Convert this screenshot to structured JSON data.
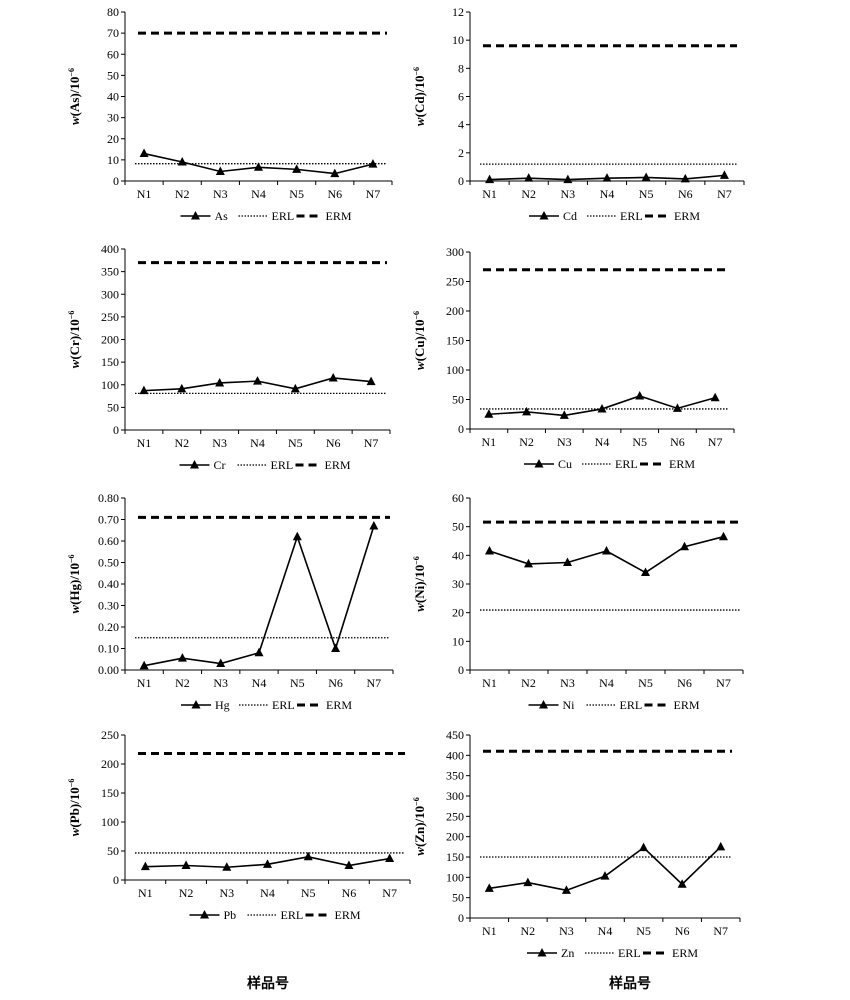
{
  "x_group_labels": [
    "样品号",
    "样品号"
  ],
  "legend_labels": {
    "erl": "ERL",
    "erm": "ERM"
  },
  "chart_data": [
    {
      "type": "line",
      "element": "As",
      "ylabel_prefix": "w",
      "ylabel_elem": "(As)",
      "ylabel_unit": "/10",
      "ylabel_exp": "−6",
      "categories": [
        "N1",
        "N2",
        "N3",
        "N4",
        "N5",
        "N6",
        "N7"
      ],
      "series": [
        {
          "name": "As",
          "values": [
            13,
            9,
            4.5,
            6.5,
            5.5,
            3.5,
            8
          ]
        }
      ],
      "erl": 8.2,
      "erm": 70,
      "ylim": [
        0,
        80
      ],
      "yticks": [
        "0",
        "10",
        "20",
        "30",
        "40",
        "50",
        "60",
        "70",
        "80"
      ]
    },
    {
      "type": "line",
      "element": "Cd",
      "ylabel_prefix": "w",
      "ylabel_elem": "(Cd)",
      "ylabel_unit": "/10",
      "ylabel_exp": "−6",
      "categories": [
        "N1",
        "N2",
        "N3",
        "N4",
        "N5",
        "N6",
        "N7"
      ],
      "series": [
        {
          "name": "Cd",
          "values": [
            0.1,
            0.2,
            0.1,
            0.2,
            0.25,
            0.15,
            0.4
          ]
        }
      ],
      "erl": 1.2,
      "erm": 9.6,
      "ylim": [
        0,
        12
      ],
      "yticks": [
        "0",
        "2",
        "4",
        "6",
        "8",
        "10",
        "12"
      ]
    },
    {
      "type": "line",
      "element": "Cr",
      "ylabel_prefix": "w",
      "ylabel_elem": "(Cr)",
      "ylabel_unit": "/10",
      "ylabel_exp": "−6",
      "categories": [
        "N1",
        "N2",
        "N3",
        "N4",
        "N5",
        "N6",
        "N7"
      ],
      "series": [
        {
          "name": "Cr",
          "values": [
            87,
            91,
            104,
            108,
            91,
            115,
            107
          ]
        }
      ],
      "erl": 81,
      "erm": 370,
      "ylim": [
        0,
        400
      ],
      "yticks": [
        "0",
        "50",
        "100",
        "150",
        "200",
        "250",
        "300",
        "350",
        "400"
      ]
    },
    {
      "type": "line",
      "element": "Cu",
      "ylabel_prefix": "w",
      "ylabel_elem": "(Cu)",
      "ylabel_unit": "/10",
      "ylabel_exp": "−6",
      "categories": [
        "N1",
        "N2",
        "N3",
        "N4",
        "N5",
        "N6",
        "N7"
      ],
      "series": [
        {
          "name": "Cu",
          "values": [
            25,
            29,
            23,
            34,
            56,
            35,
            53
          ]
        }
      ],
      "erl": 34,
      "erm": 270,
      "ylim": [
        0,
        300
      ],
      "yticks": [
        "0",
        "50",
        "100",
        "150",
        "200",
        "250",
        "300"
      ]
    },
    {
      "type": "line",
      "element": "Hg",
      "ylabel_prefix": "w",
      "ylabel_elem": "(Hg)",
      "ylabel_unit": "/10",
      "ylabel_exp": "−6",
      "categories": [
        "N1",
        "N2",
        "N3",
        "N4",
        "N5",
        "N6",
        "N7"
      ],
      "series": [
        {
          "name": "Hg",
          "values": [
            0.02,
            0.055,
            0.03,
            0.08,
            0.62,
            0.1,
            0.67
          ]
        }
      ],
      "erl": 0.15,
      "erm": 0.71,
      "ylim": [
        0,
        0.8
      ],
      "yticks": [
        "0.00",
        "0.10",
        "0.20",
        "0.30",
        "0.40",
        "0.50",
        "0.60",
        "0.70",
        "0.80"
      ]
    },
    {
      "type": "line",
      "element": "Ni",
      "ylabel_prefix": "w",
      "ylabel_elem": "(Ni)",
      "ylabel_unit": "/10",
      "ylabel_exp": "−6",
      "categories": [
        "N1",
        "N2",
        "N3",
        "N4",
        "N5",
        "N6",
        "N7"
      ],
      "series": [
        {
          "name": "Ni",
          "values": [
            41.5,
            37,
            37.5,
            41.5,
            34,
            43,
            46.5
          ]
        }
      ],
      "erl": 20.9,
      "erm": 51.6,
      "ylim": [
        0,
        60
      ],
      "yticks": [
        "0",
        "10",
        "20",
        "30",
        "40",
        "50",
        "60"
      ]
    },
    {
      "type": "line",
      "element": "Pb",
      "ylabel_prefix": "w",
      "ylabel_elem": "(Pb)",
      "ylabel_unit": "/10",
      "ylabel_exp": "−6",
      "categories": [
        "N1",
        "N2",
        "N3",
        "N4",
        "N5",
        "N6",
        "N7"
      ],
      "series": [
        {
          "name": "Pb",
          "values": [
            23,
            25,
            22,
            27,
            40,
            25,
            37
          ]
        }
      ],
      "erl": 46.7,
      "erm": 218,
      "ylim": [
        0,
        250
      ],
      "yticks": [
        "0",
        "50",
        "100",
        "150",
        "200",
        "250"
      ]
    },
    {
      "type": "line",
      "element": "Zn",
      "ylabel_prefix": "w",
      "ylabel_elem": "(Zn)",
      "ylabel_unit": "/10",
      "ylabel_exp": "−6",
      "categories": [
        "N1",
        "N2",
        "N3",
        "N4",
        "N5",
        "N6",
        "N7"
      ],
      "series": [
        {
          "name": "Zn",
          "values": [
            73,
            87,
            68,
            103,
            173,
            83,
            175
          ]
        }
      ],
      "erl": 150,
      "erm": 410,
      "ylim": [
        0,
        450
      ],
      "yticks": [
        "0",
        "50",
        "100",
        "150",
        "200",
        "250",
        "300",
        "350",
        "400",
        "450"
      ]
    }
  ]
}
